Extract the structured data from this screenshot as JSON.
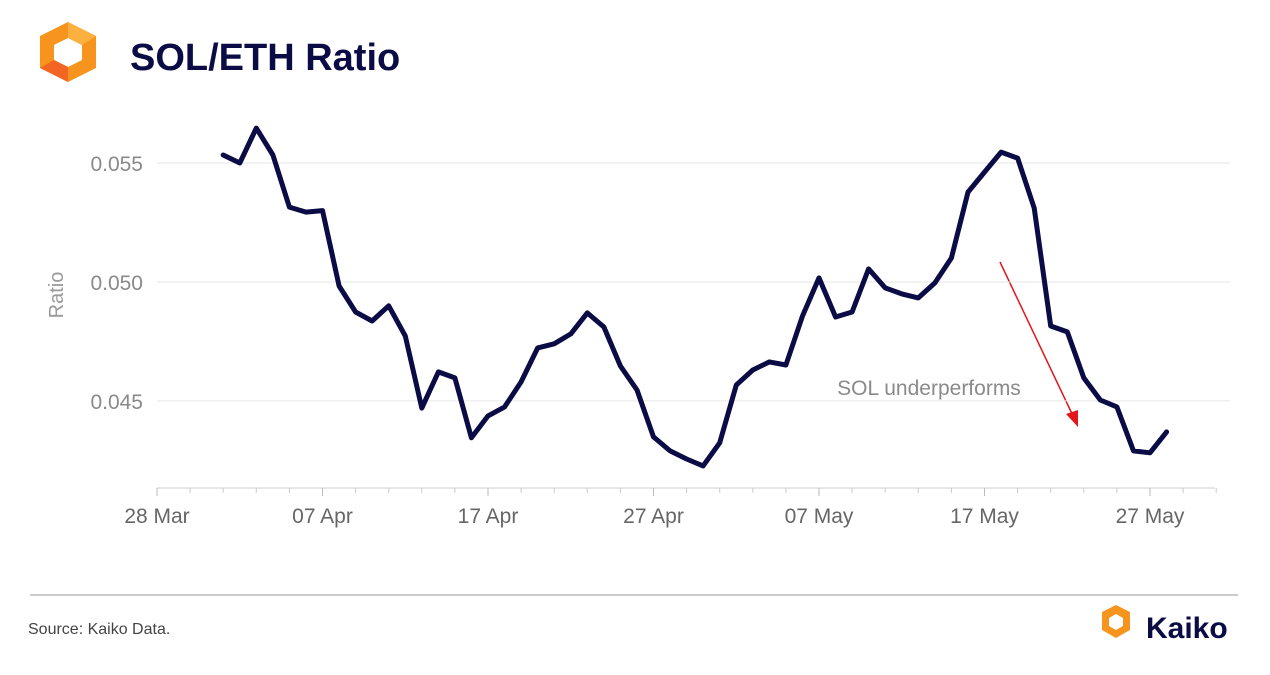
{
  "chart_data": {
    "type": "line",
    "title": "SOL/ETH Ratio",
    "y_label": "Ratio",
    "annotation": "SOL underperforms",
    "source": "Source: Kaiko Data.",
    "brand": "Kaiko",
    "categories": [
      "28 Mar",
      "29 Mar",
      "30 Mar",
      "31 Mar",
      "01 Apr",
      "02 Apr",
      "03 Apr",
      "04 Apr",
      "05 Apr",
      "06 Apr",
      "07 Apr",
      "08 Apr",
      "09 Apr",
      "10 Apr",
      "11 Apr",
      "12 Apr",
      "13 Apr",
      "14 Apr",
      "15 Apr",
      "16 Apr",
      "17 Apr",
      "18 Apr",
      "19 Apr",
      "20 Apr",
      "21 Apr",
      "22 Apr",
      "23 Apr",
      "24 Apr",
      "25 Apr",
      "26 Apr",
      "27 Apr",
      "28 Apr",
      "29 Apr",
      "30 Apr",
      "01 May",
      "02 May",
      "03 May",
      "04 May",
      "05 May",
      "06 May",
      "07 May",
      "08 May",
      "09 May",
      "10 May",
      "11 May",
      "12 May",
      "13 May",
      "14 May",
      "15 May",
      "16 May",
      "17 May",
      "18 May",
      "19 May",
      "20 May",
      "21 May",
      "22 May",
      "23 May",
      "24 May",
      "25 May",
      "26 May",
      "27 May",
      "28 May",
      "29 May",
      "30 May",
      "31 May"
    ],
    "series": [
      {
        "name": "SOL/ETH",
        "color": "#0b0c45",
        "values": [
          null,
          null,
          null,
          null,
          0.05534,
          0.055,
          0.05647,
          0.05534,
          0.05315,
          0.05294,
          0.053,
          0.04983,
          0.04874,
          0.04836,
          0.049,
          0.04773,
          0.0447,
          0.04622,
          0.04597,
          0.04345,
          0.04437,
          0.04475,
          0.0458,
          0.04723,
          0.0474,
          0.04782,
          0.0487,
          0.04811,
          0.04647,
          0.04546,
          0.04349,
          0.0429,
          0.04256,
          0.04227,
          0.04324,
          0.04567,
          0.0463,
          0.04664,
          0.04651,
          0.04857,
          0.05017,
          0.04853,
          0.04874,
          0.05055,
          0.04975,
          0.0495,
          0.04933,
          0.04996,
          0.05101,
          0.05378,
          0.05462,
          0.05546,
          0.05521,
          0.05311,
          0.04815,
          0.0479,
          0.04597,
          0.04504,
          0.04475,
          0.0429,
          0.04282,
          0.0437,
          null,
          null,
          null
        ]
      }
    ],
    "xticks": [
      "28 Mar",
      "07 Apr",
      "17 Apr",
      "27 Apr",
      "07 May",
      "17 May",
      "27 May"
    ],
    "ylim": [
      0.04134,
      0.05723
    ],
    "yticks": [
      0.045,
      {
        "value": 0.05,
        "label": "0.050"
      },
      0.055
    ],
    "grid": true
  }
}
